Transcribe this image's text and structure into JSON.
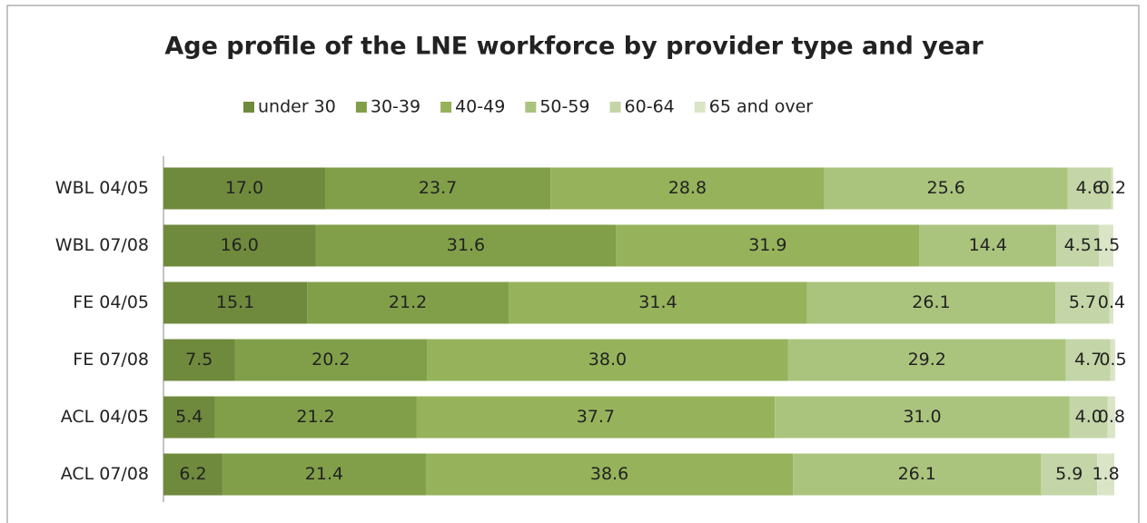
{
  "chart_data": {
    "type": "stacked-bar-horizontal",
    "title": "Age profile of the LNE workforce by provider type and year",
    "categories": [
      "WBL 04/05",
      "WBL 07/08",
      "FE 04/05",
      "FE 07/08",
      "ACL 04/05",
      "ACL 07/08"
    ],
    "xlim": [
      0,
      100
    ],
    "legend": "top",
    "series": [
      {
        "name": "under 30",
        "color": "#6f8a3c",
        "values": [
          17,
          16,
          15.1,
          7.5,
          5.4,
          6.2
        ],
        "value_labels": [
          "17.0",
          "16.0",
          "15.1",
          "7.5",
          "5.4",
          "6.2"
        ]
      },
      {
        "name": "30-39",
        "color": "#819f49",
        "values": [
          23.7,
          31.6,
          21.2,
          20.2,
          21.2,
          21.4
        ],
        "value_labels": [
          "23.7",
          "31.6",
          "21.2",
          "20.2",
          "21.2",
          "21.4"
        ]
      },
      {
        "name": "40-49",
        "color": "#96b35b",
        "values": [
          28.8,
          31.9,
          31.4,
          38,
          37.7,
          38.6
        ],
        "value_labels": [
          "28.8",
          "31.9",
          "31.4",
          "38.0",
          "37.7",
          "38.6"
        ]
      },
      {
        "name": "50-59",
        "color": "#abc47d",
        "values": [
          25.6,
          14.4,
          26.1,
          29.2,
          31,
          26.1
        ],
        "value_labels": [
          "25.6",
          "14.4",
          "26.1",
          "29.2",
          "31.0",
          "26.1"
        ]
      },
      {
        "name": "60-64",
        "color": "#c4d5a7",
        "values": [
          4.6,
          4.5,
          5.7,
          4.7,
          4,
          5.9
        ],
        "value_labels": [
          "4.6",
          "4.5",
          "5.7",
          "4.7",
          "4.0",
          "5.9"
        ]
      },
      {
        "name": "65 and over",
        "color": "#dae5c7",
        "values": [
          0.2,
          1.5,
          0.4,
          0.5,
          0.8,
          1.8
        ],
        "value_labels": [
          "0.2",
          "1.5",
          "0.4",
          "0.5",
          "0.8",
          "1.8"
        ]
      }
    ]
  }
}
